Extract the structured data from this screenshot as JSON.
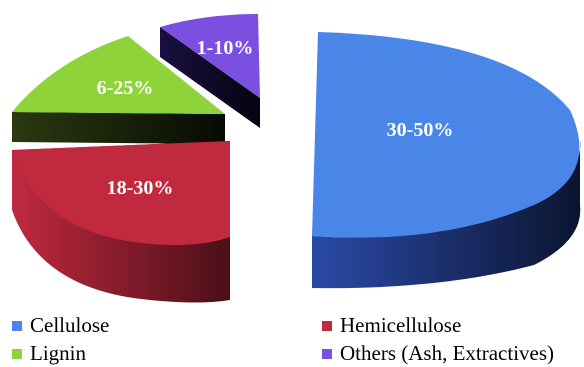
{
  "chart_data": {
    "type": "pie",
    "title": "",
    "categories": [
      "Cellulose",
      "Hemicellulose",
      "Lignin",
      "Others (Ash, Extractives)"
    ],
    "values": [
      50,
      25,
      17,
      8
    ],
    "labels": [
      "30-50%",
      "18-30%",
      "6-25%",
      "1-10%"
    ],
    "colors": [
      "#4a86e8",
      "#c0293e",
      "#8ed33a",
      "#7b4fe0"
    ],
    "legend": {
      "position": "bottom",
      "items": [
        "Cellulose",
        "Hemicellulose",
        "Lignin",
        "Others (Ash, Extractives)"
      ]
    },
    "exploded": true,
    "three_d": true
  }
}
